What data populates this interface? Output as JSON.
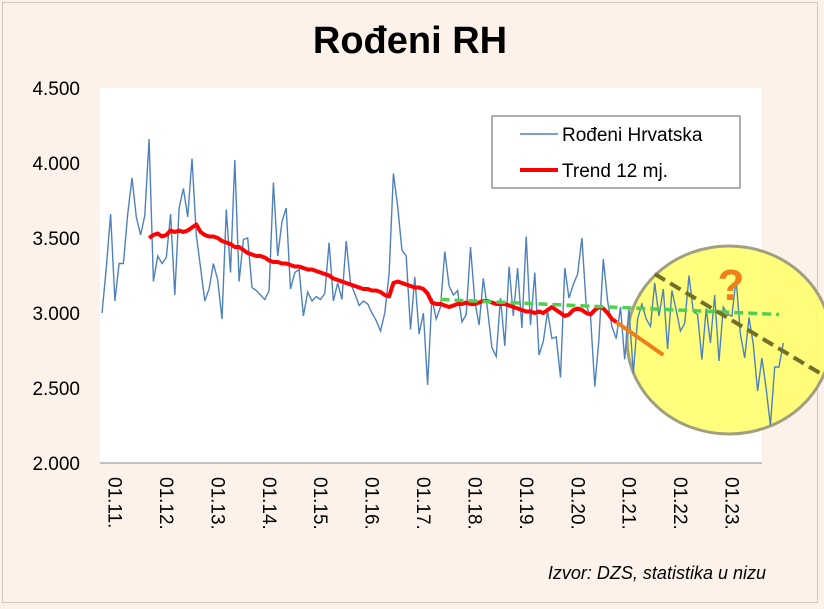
{
  "title": "Rođeni RH",
  "source": "Izvor: DZS, statistika u nizu",
  "annotation": "?",
  "colors": {
    "series": "#4f81bd",
    "trend": "#ff0000",
    "trend_highlight": "#f07f1a",
    "green_dash": "#4fd04f",
    "dark_dash": "#707028",
    "highlight_fill": "#ffff66",
    "highlight_stroke": "#a0a080",
    "plot_bg": "#ffffff"
  },
  "chart_data": {
    "type": "line",
    "title": "Rođeni RH",
    "xlabel": "",
    "ylabel": "",
    "ylim": [
      2000,
      4500
    ],
    "y_ticks": [
      "2.000",
      "2.500",
      "3.000",
      "3.500",
      "4.000",
      "4.500"
    ],
    "y_tick_values": [
      2000,
      2500,
      3000,
      3500,
      4000,
      4500
    ],
    "x_ticks": [
      "01.11.",
      "01.12.",
      "01.13.",
      "01.14.",
      "01.15.",
      "01.16.",
      "01.17.",
      "01.18.",
      "01.19.",
      "01.20.",
      "01.21.",
      "01.22.",
      "01.23."
    ],
    "x_start": "01.11.",
    "x_end": "10.23.",
    "grid": false,
    "legend_position": "top-right",
    "legend": [
      "Rođeni Hrvatska",
      "Trend 12 mj."
    ],
    "series": [
      {
        "name": "Rođeni Hrvatska",
        "style": "thin",
        "values": [
          3000,
          3300,
          3660,
          3080,
          3330,
          3330,
          3660,
          3900,
          3640,
          3520,
          3650,
          4160,
          3210,
          3380,
          3330,
          3370,
          3660,
          3120,
          3700,
          3830,
          3640,
          4030,
          3520,
          3300,
          3080,
          3160,
          3330,
          3220,
          2960,
          3690,
          3270,
          4020,
          3210,
          3490,
          3500,
          3170,
          3150,
          3120,
          3090,
          3150,
          3870,
          3380,
          3610,
          3700,
          3160,
          3270,
          3290,
          2980,
          3140,
          3080,
          3110,
          3090,
          3130,
          3470,
          3080,
          3200,
          3090,
          3480,
          3200,
          3130,
          3050,
          3080,
          3060,
          3000,
          2950,
          2880,
          3000,
          3260,
          3930,
          3710,
          3420,
          3380,
          2890,
          3240,
          2860,
          3000,
          2520,
          3100,
          2960,
          3040,
          3410,
          3180,
          3120,
          3150,
          2940,
          2990,
          3440,
          3080,
          2920,
          3230,
          3020,
          2770,
          2710,
          3100,
          2780,
          3310,
          2980,
          3300,
          2900,
          3510,
          2920,
          3270,
          2720,
          2810,
          3010,
          2830,
          2840,
          2570,
          3300,
          3100,
          3190,
          3260,
          3500,
          3050,
          2980,
          2510,
          2830,
          3360,
          3080,
          2910,
          2830,
          3040,
          2690,
          3030,
          2600,
          2960,
          3060,
          2960,
          2910,
          3200,
          2980,
          3160,
          2760,
          3150,
          3020,
          2880,
          2930,
          3250,
          3010,
          2990,
          2690,
          3030,
          2800,
          3120,
          2680,
          3040,
          2990,
          2980,
          3230,
          2860,
          2700,
          2970,
          2790,
          2480,
          2700,
          2500,
          2250,
          2640,
          2640,
          2800
        ]
      },
      {
        "name": "Trend 12 mj.",
        "style": "thick",
        "start_index": 11,
        "values": [
          3500,
          3520,
          3530,
          3510,
          3520,
          3550,
          3540,
          3550,
          3540,
          3550,
          3570,
          3590,
          3540,
          3520,
          3510,
          3510,
          3500,
          3480,
          3470,
          3460,
          3440,
          3440,
          3420,
          3400,
          3390,
          3380,
          3380,
          3370,
          3350,
          3340,
          3340,
          3330,
          3330,
          3320,
          3310,
          3310,
          3300,
          3290,
          3290,
          3280,
          3270,
          3260,
          3250,
          3230,
          3220,
          3210,
          3200,
          3190,
          3180,
          3170,
          3160,
          3160,
          3150,
          3150,
          3140,
          3120,
          3110,
          3200,
          3210,
          3200,
          3190,
          3180,
          3170,
          3170,
          3160,
          3130,
          3070,
          3060,
          3060,
          3050,
          3040,
          3050,
          3060,
          3060,
          3070,
          3060,
          3060,
          3070,
          3080,
          3080,
          3070,
          3060,
          3060,
          3060,
          3050,
          3040,
          3030,
          3020,
          3010,
          3010,
          3000,
          3010,
          3000,
          3020,
          3040,
          3020,
          3000,
          2980,
          2990,
          3020,
          3030,
          3020,
          3000,
          2990,
          3020,
          3040,
          3030,
          3000,
          2960,
          2940,
          2920,
          2900,
          2880,
          2860,
          2840,
          2820,
          2800,
          2780,
          2760,
          2740,
          2720
        ]
      },
      {
        "name": "",
        "style": "green-dash",
        "x_index": [
          79,
          158
        ],
        "values": [
          3090,
          2990
        ]
      },
      {
        "name": "",
        "style": "dark-dash",
        "x_index": [
          129,
          164
        ],
        "values": [
          3260,
          2540
        ]
      }
    ]
  }
}
